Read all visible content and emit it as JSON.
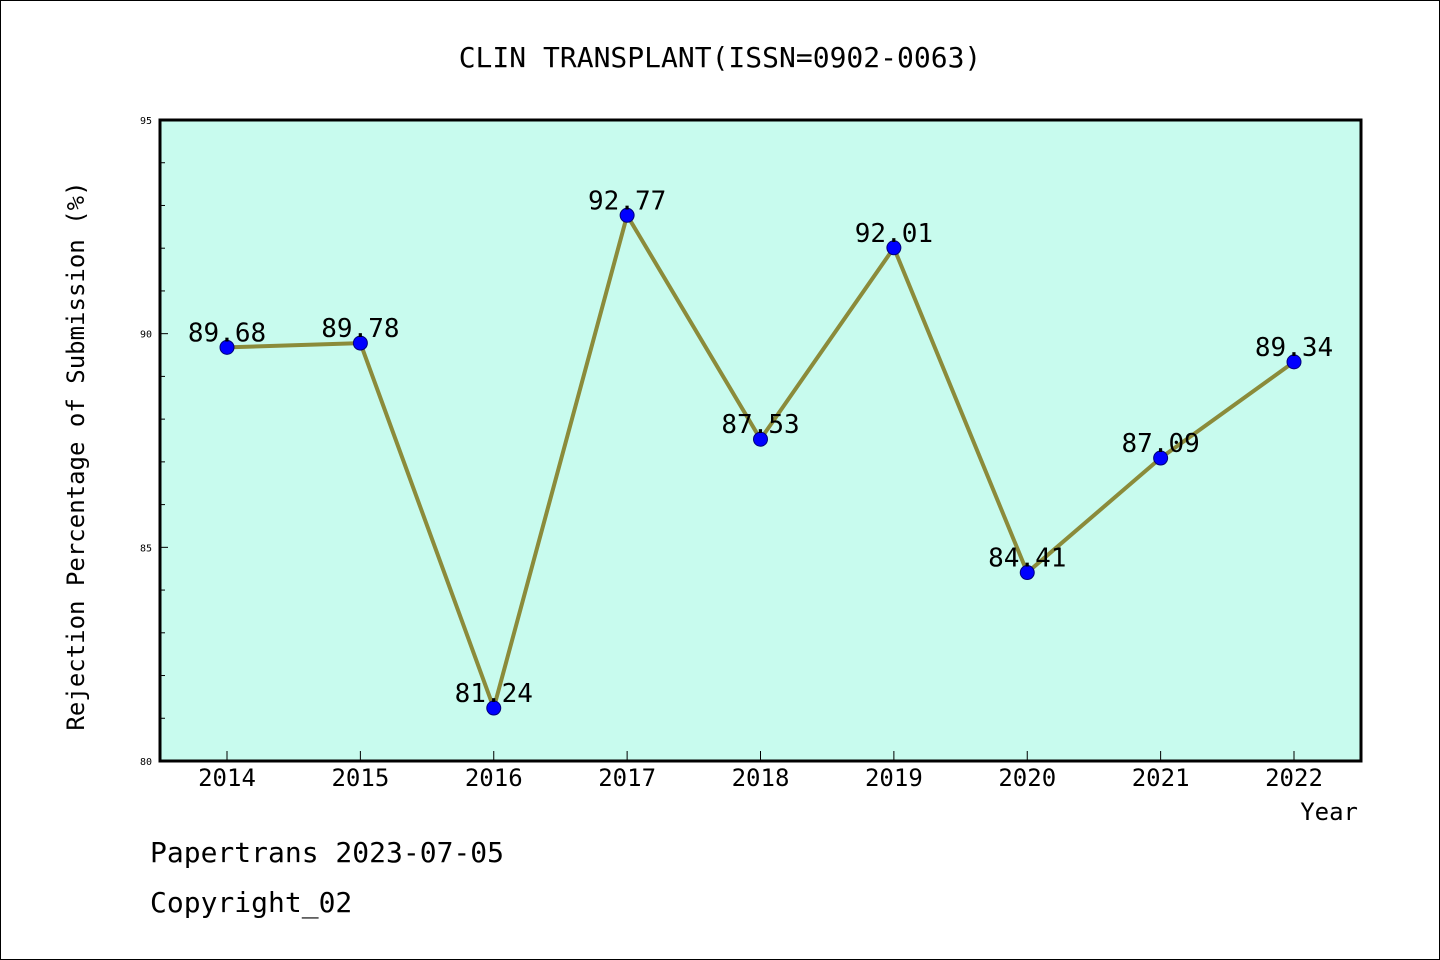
{
  "chart_data": {
    "type": "line",
    "title": "CLIN TRANSPLANT(ISSN=0902-0063)",
    "xlabel": "Year",
    "ylabel": "Rejection Percentage of Submission (%)",
    "categories": [
      "2014",
      "2015",
      "2016",
      "2017",
      "2018",
      "2019",
      "2020",
      "2021",
      "2022"
    ],
    "values": [
      89.68,
      89.78,
      81.24,
      92.77,
      87.53,
      92.01,
      84.41,
      87.09,
      89.34
    ],
    "value_labels": [
      "89.68",
      "89.78",
      "81.24",
      "92.77",
      "87.53",
      "92.01",
      "84.41",
      "87.09",
      "89.34"
    ],
    "ylim": [
      80,
      95
    ],
    "yticks": [
      80,
      85,
      90,
      95
    ],
    "ytick_labels": [
      "80",
      "85",
      "90",
      "95"
    ],
    "grid": false,
    "line_color": "#8B8B3A",
    "marker_color": "#0000FF",
    "plot_background": "#C8FBEE"
  },
  "footer": {
    "source": "Papertrans 2023-07-05",
    "copyright": "Copyright_02"
  }
}
